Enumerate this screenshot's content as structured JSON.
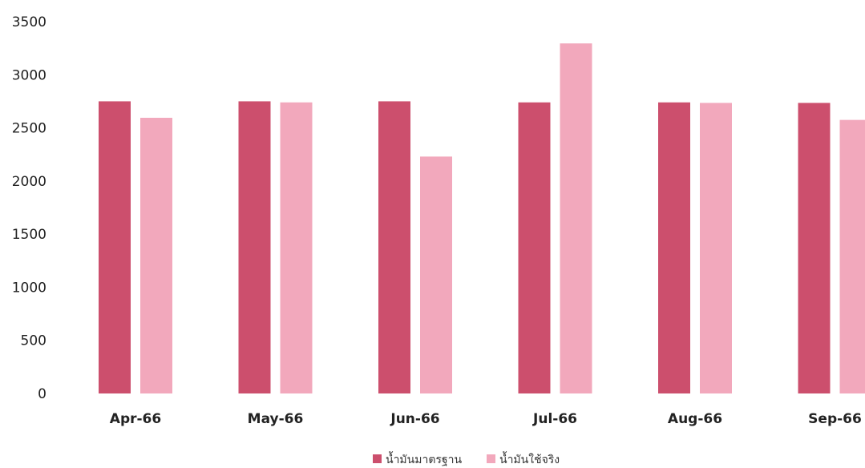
{
  "chart_data": {
    "type": "bar",
    "categories": [
      "Apr-66",
      "May-66",
      "Jun-66",
      "Jul-66",
      "Aug-66",
      "Sep-66"
    ],
    "series": [
      {
        "name": "น้ำมันมาตรฐาน",
        "color": "#cc4f6d",
        "values": [
          2750,
          2750,
          2750,
          2740,
          2740,
          2735
        ]
      },
      {
        "name": "น้ำมันใช้จริง",
        "color": "#f2a8bc",
        "values": [
          2595,
          2740,
          2230,
          3295,
          2735,
          2575
        ]
      }
    ],
    "yticks": [
      0,
      500,
      1000,
      1500,
      2000,
      2500,
      3000,
      3500
    ],
    "ylim": [
      0,
      3500
    ],
    "grid": false,
    "legend_position": "bottom-center"
  }
}
